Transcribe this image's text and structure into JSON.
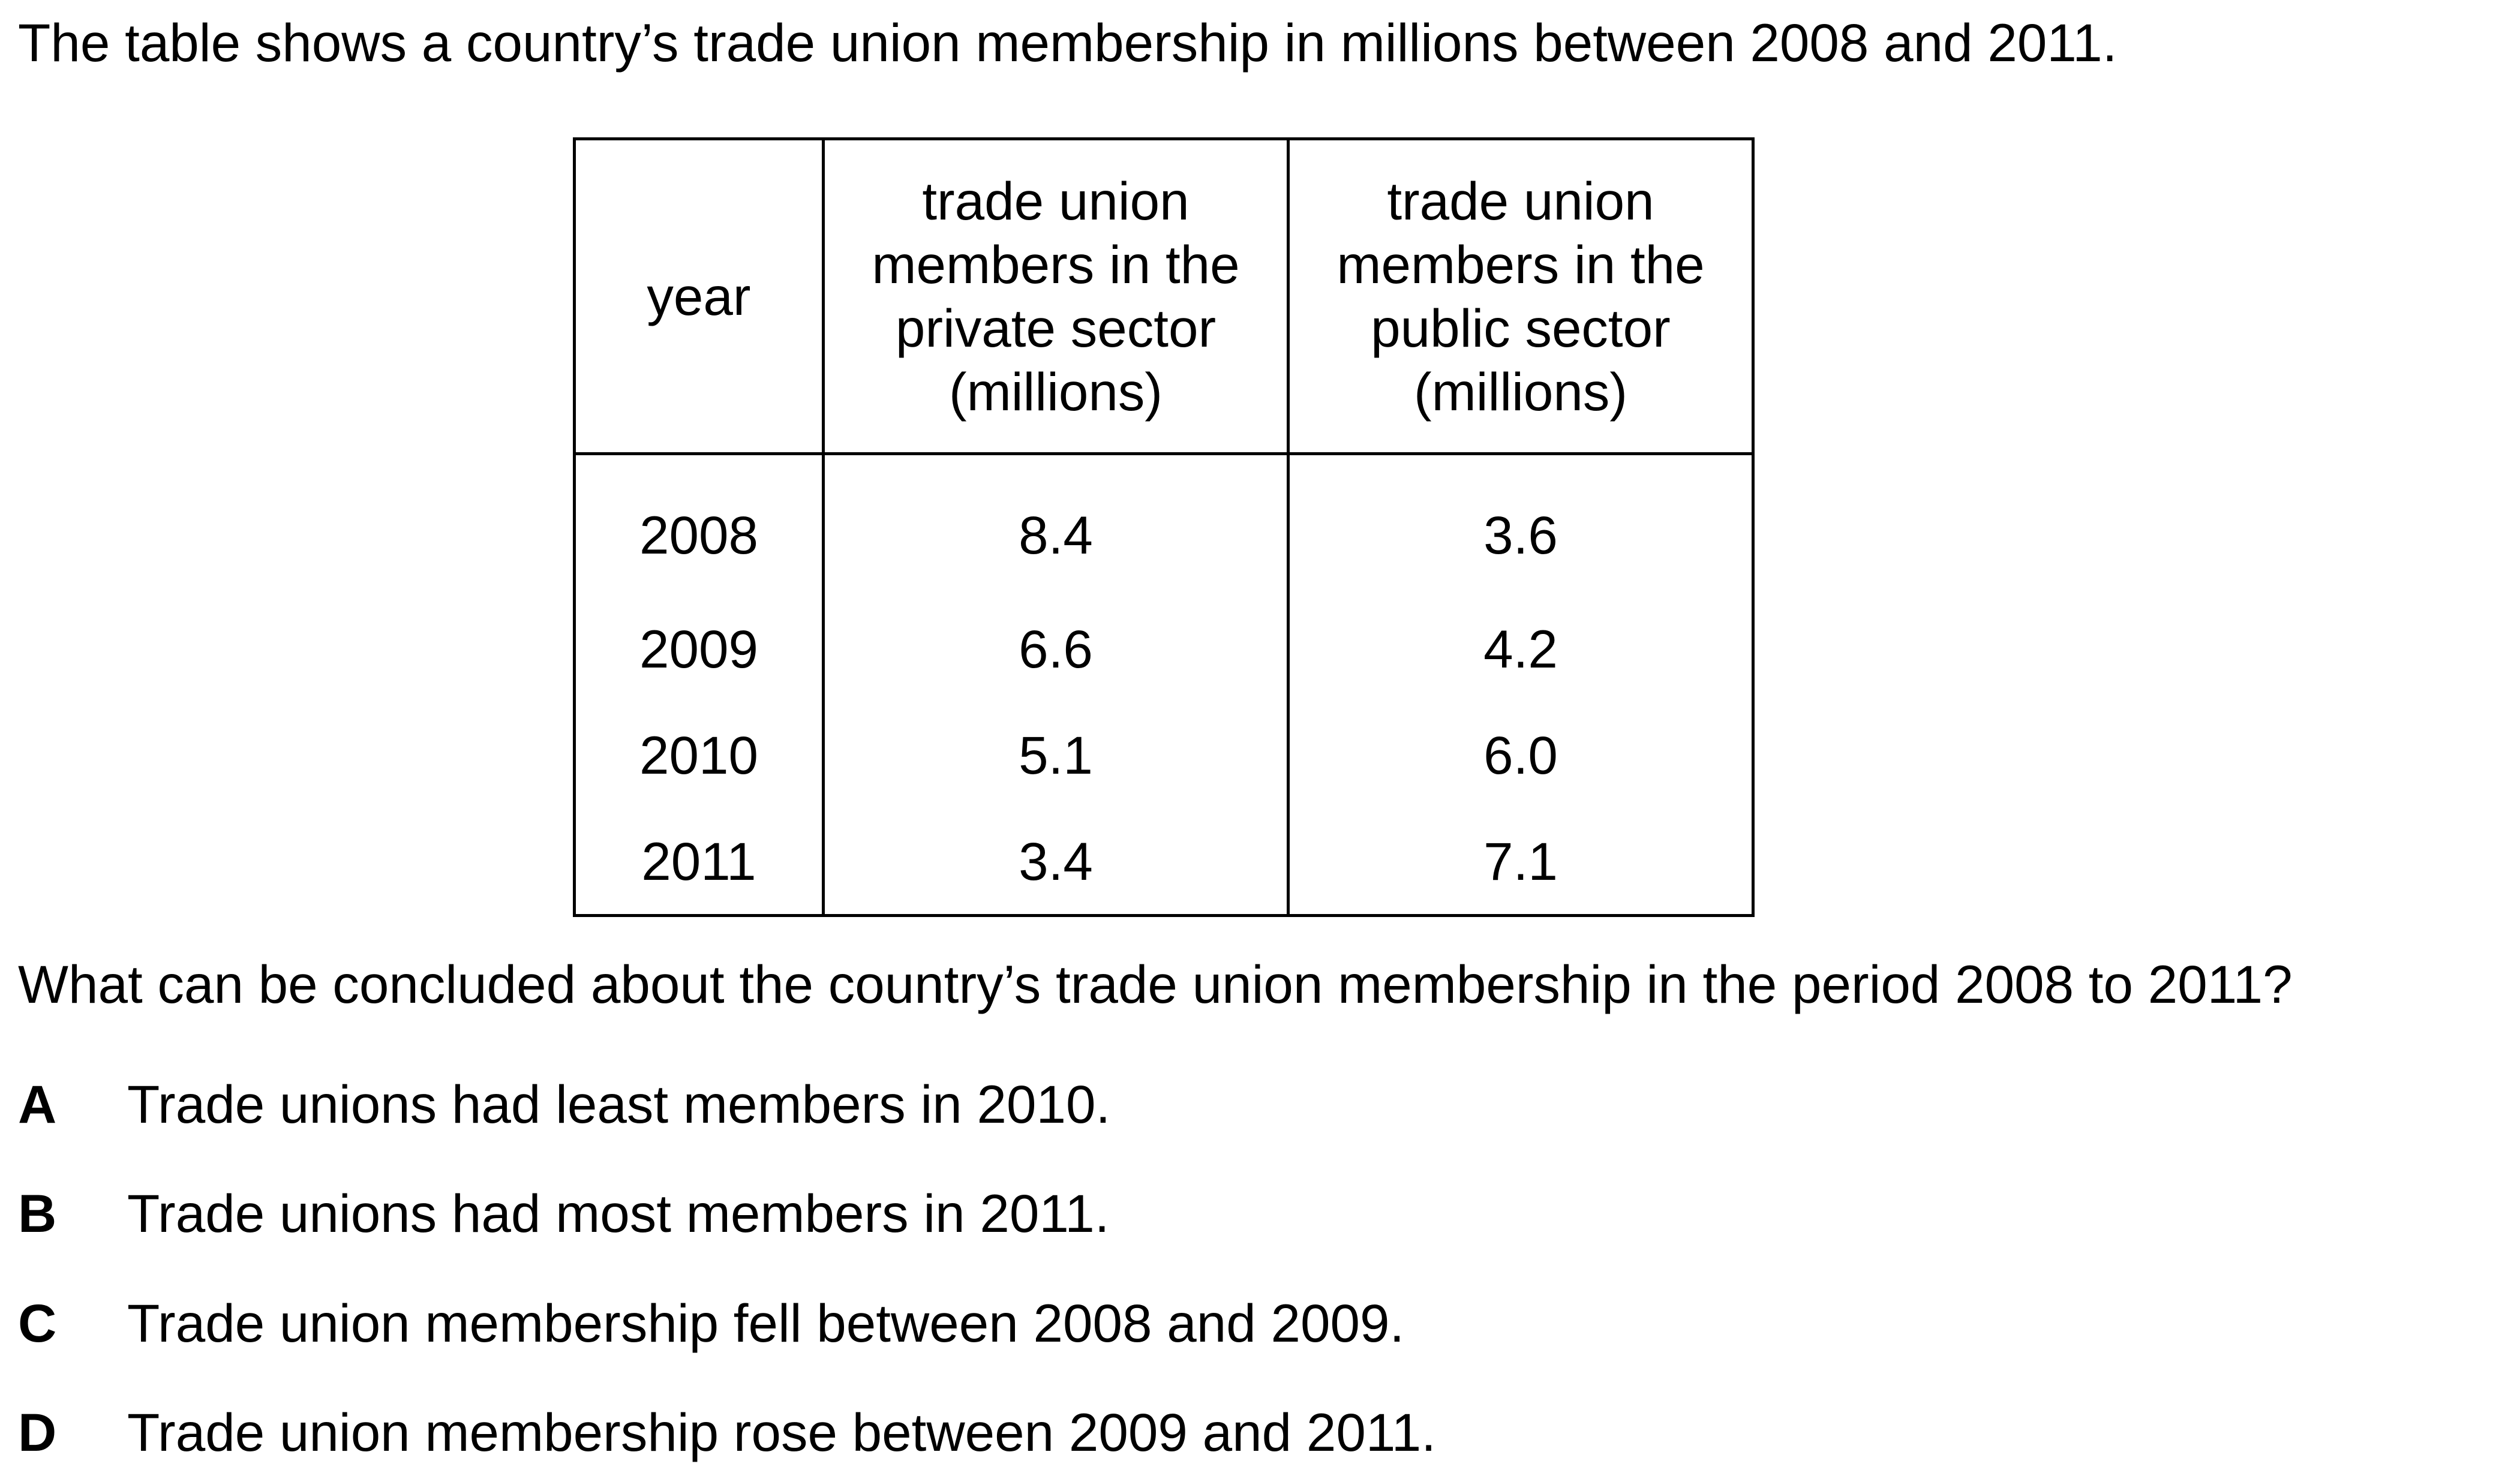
{
  "intro": "The table shows a country’s trade union membership in millions between 2008 and 2011.",
  "table": {
    "headers": {
      "year": "year",
      "private": [
        "trade union",
        "members in the",
        "private sector",
        "(millions)"
      ],
      "public": [
        "trade union",
        "members in the",
        "public sector",
        "(millions)"
      ]
    },
    "rows": [
      {
        "year": "2008",
        "private": "8.4",
        "public": "3.6"
      },
      {
        "year": "2009",
        "private": "6.6",
        "public": "4.2"
      },
      {
        "year": "2010",
        "private": "5.1",
        "public": "6.0"
      },
      {
        "year": "2011",
        "private": "3.4",
        "public": "7.1"
      }
    ]
  },
  "question": "What can be concluded about the country’s trade union membership in the period 2008 to 2011?",
  "options": [
    {
      "letter": "A",
      "text": "Trade unions had least members in 2010."
    },
    {
      "letter": "B",
      "text": "Trade unions had most members in 2011."
    },
    {
      "letter": "C",
      "text": "Trade union membership fell between 2008 and 2009."
    },
    {
      "letter": "D",
      "text": "Trade union membership rose between 2009 and 2011."
    }
  ]
}
